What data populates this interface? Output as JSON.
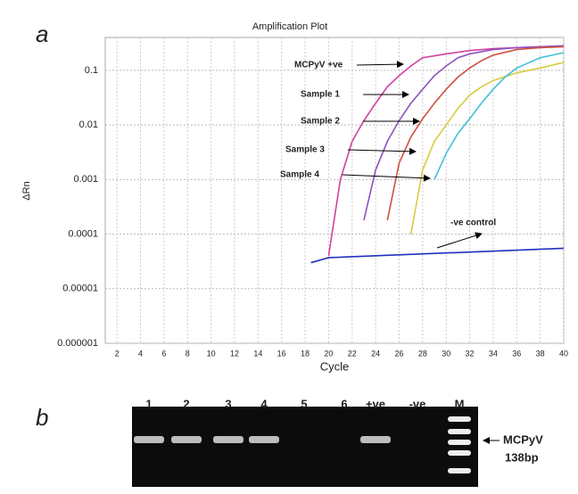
{
  "panel_labels": [
    "a",
    "b"
  ],
  "chart_data": {
    "type": "line",
    "title": "Amplification Plot",
    "x_label": "Cycle",
    "y_label": "ΔRn",
    "log_y": true,
    "grid": true,
    "xlim": [
      1,
      40
    ],
    "xticks": [
      2,
      4,
      6,
      8,
      10,
      12,
      14,
      16,
      18,
      20,
      22,
      24,
      26,
      28,
      30,
      32,
      34,
      36,
      38,
      40
    ],
    "ylim": [
      1e-06,
      0.4
    ],
    "yticks": [
      0.1,
      0.01,
      0.001,
      0.0001,
      1e-05,
      1e-06
    ],
    "series": [
      {
        "name": "MCPyV +ve",
        "color": "#d040a0",
        "x": [
          20,
          21,
          22,
          23,
          24,
          25,
          26,
          27,
          28,
          30,
          32,
          34,
          36,
          38,
          40
        ],
        "values": [
          4e-05,
          0.001,
          0.005,
          0.012,
          0.025,
          0.05,
          0.08,
          0.12,
          0.17,
          0.2,
          0.23,
          0.25,
          0.26,
          0.27,
          0.28
        ]
      },
      {
        "name": "Sample 1",
        "color": "#9050c0",
        "x": [
          23,
          24,
          25,
          26,
          27,
          28,
          29,
          30,
          31,
          32,
          34,
          36,
          38,
          40
        ],
        "values": [
          0.00018,
          0.0015,
          0.005,
          0.012,
          0.025,
          0.045,
          0.08,
          0.12,
          0.17,
          0.2,
          0.24,
          0.26,
          0.27,
          0.28
        ]
      },
      {
        "name": "Sample 2",
        "color": "#d05040",
        "x": [
          25,
          26,
          27,
          28,
          29,
          30,
          31,
          32,
          33,
          34,
          36,
          38,
          40
        ],
        "values": [
          0.00018,
          0.002,
          0.006,
          0.013,
          0.025,
          0.045,
          0.075,
          0.11,
          0.15,
          0.19,
          0.24,
          0.26,
          0.27
        ]
      },
      {
        "name": "Sample 3",
        "color": "#d8cc40",
        "x": [
          27,
          28,
          29,
          30,
          31,
          32,
          33,
          34,
          36,
          38,
          40
        ],
        "values": [
          0.0001,
          0.0015,
          0.005,
          0.01,
          0.02,
          0.035,
          0.05,
          0.065,
          0.09,
          0.11,
          0.14
        ]
      },
      {
        "name": "Sample 4",
        "color": "#40c0d8",
        "x": [
          29,
          30,
          31,
          32,
          33,
          34,
          35,
          36,
          38,
          40
        ],
        "values": [
          0.001,
          0.003,
          0.007,
          0.013,
          0.025,
          0.045,
          0.075,
          0.11,
          0.17,
          0.21
        ]
      },
      {
        "name": "-ve control",
        "color": "#2030c0",
        "x": [
          18.5,
          20,
          40
        ],
        "values": [
          3e-05,
          3.7e-05,
          5.5e-05
        ]
      }
    ]
  },
  "gel": {
    "lanes": [
      "1",
      "2",
      "3",
      "4",
      "5",
      "6",
      "+ve",
      "-ve",
      "M"
    ],
    "band_label": [
      "MCPyV",
      "138bp"
    ]
  }
}
